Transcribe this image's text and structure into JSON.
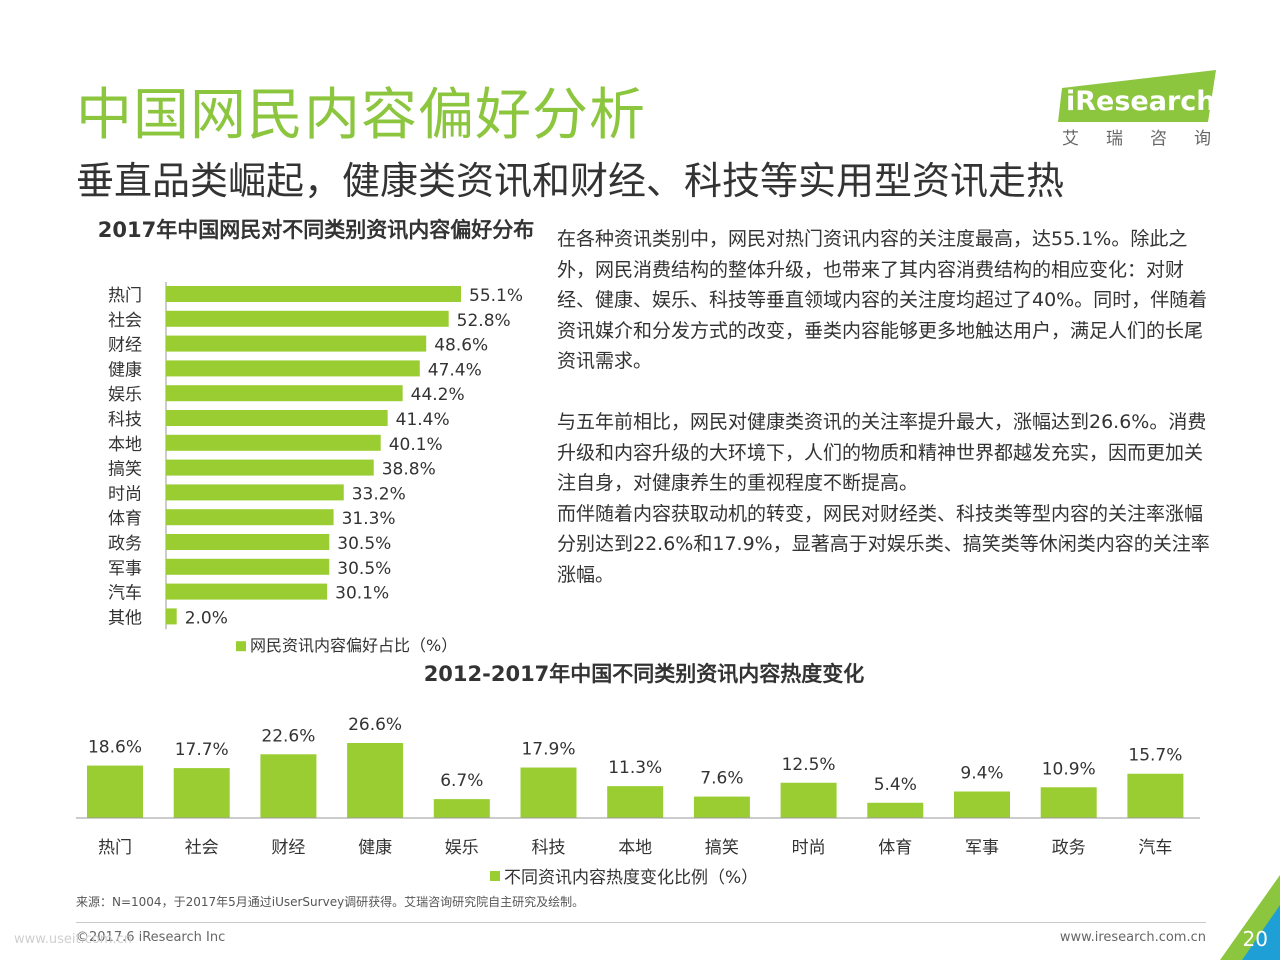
{
  "header": {
    "title": "中国网民内容偏好分析",
    "subtitle": "垂直品类崛起，健康类资讯和财经、科技等实用型资讯走热"
  },
  "logo": {
    "brand": "iResearch",
    "brand_cn": "艾瑞咨询"
  },
  "colors": {
    "accent": "#8cc63f",
    "bar": "#9acd32"
  },
  "chart_data": [
    {
      "type": "bar",
      "orientation": "horizontal",
      "title": "2017年中国网民对不同类别资讯内容偏好分布",
      "categories": [
        "热门",
        "社会",
        "财经",
        "健康",
        "娱乐",
        "科技",
        "本地",
        "搞笑",
        "时尚",
        "体育",
        "政务",
        "军事",
        "汽车",
        "其他"
      ],
      "series": [
        {
          "name": "网民资讯内容偏好占比（%）",
          "values": [
            55.1,
            52.8,
            48.6,
            47.4,
            44.2,
            41.4,
            40.1,
            38.8,
            33.2,
            31.3,
            30.5,
            30.5,
            30.1,
            2.0
          ]
        }
      ],
      "xlim": [
        0,
        60
      ],
      "legend": "bottom",
      "grid": false
    },
    {
      "type": "bar",
      "orientation": "vertical",
      "title": "2012-2017年中国不同类别资讯内容热度变化",
      "categories": [
        "热门",
        "社会",
        "财经",
        "健康",
        "娱乐",
        "科技",
        "本地",
        "搞笑",
        "时尚",
        "体育",
        "军事",
        "政务",
        "汽车"
      ],
      "series": [
        {
          "name": "不同资讯内容热度变化比例（%）",
          "values": [
            18.6,
            17.7,
            22.6,
            26.6,
            6.7,
            17.9,
            11.3,
            7.6,
            12.5,
            5.4,
            9.4,
            10.9,
            15.7
          ]
        }
      ],
      "ylim": [
        0,
        30
      ],
      "legend": "bottom",
      "grid": false
    }
  ],
  "text": {
    "para1": "在各种资讯类别中，网民对热门资讯内容的关注度最高，达55.1%。除此之外，网民消费结构的整体升级，也带来了其内容消费结构的相应变化：对财经、健康、娱乐、科技等垂直领域内容的关注度均超过了40%。同时，伴随着资讯媒介和分发方式的改变，垂类内容能够更多地触达用户，满足人们的长尾资讯需求。",
    "para2a": "与五年前相比，网民对健康类资讯的关注率提升最大，涨幅达到26.6%。消费升级和内容升级的大环境下，人们的物质和精神世界都越发充实，因而更加关注自身，对健康养生的重视程度不断提高。",
    "para2b": "而伴随着内容获取动机的转变，网民对财经类、科技类等型内容的关注率涨幅分别达到22.6%和17.9%，显著高于对娱乐类、搞笑类等休闲类内容的关注率涨幅。"
  },
  "footer": {
    "source": "来源：N=1004，于2017年5月通过iUserSurvey调研获得。艾瑞咨询研究院自主研究及绘制。",
    "copyright": "©2017.6 iResearch Inc",
    "website": "www.iresearch.com.cn",
    "page": "20",
    "watermark": "www.useit.com.cn"
  }
}
